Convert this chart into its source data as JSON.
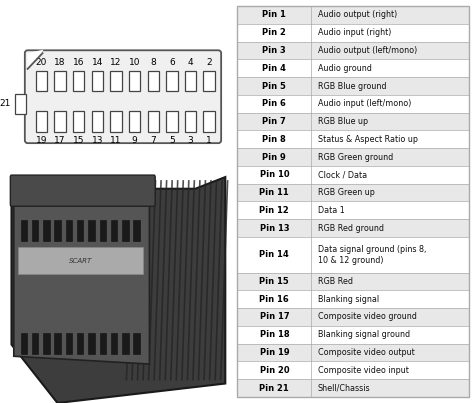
{
  "pins": [
    {
      "num": 1,
      "desc": "Audio output (right)"
    },
    {
      "num": 2,
      "desc": "Audio input (right)"
    },
    {
      "num": 3,
      "desc": "Audio output (left/mono)"
    },
    {
      "num": 4,
      "desc": "Audio ground"
    },
    {
      "num": 5,
      "desc": "RGB Blue ground"
    },
    {
      "num": 6,
      "desc": "Audio input (left/mono)"
    },
    {
      "num": 7,
      "desc": "RGB Blue up"
    },
    {
      "num": 8,
      "desc": "Status & Aspect Ratio up"
    },
    {
      "num": 9,
      "desc": "RGB Green ground"
    },
    {
      "num": 10,
      "desc": "Clock / Data"
    },
    {
      "num": 11,
      "desc": "RGB Green up"
    },
    {
      "num": 12,
      "desc": "Data 1"
    },
    {
      "num": 13,
      "desc": "RGB Red ground"
    },
    {
      "num": 14,
      "desc": "Data signal ground (pins 8,\n10 & 12 ground)"
    },
    {
      "num": 15,
      "desc": "RGB Red"
    },
    {
      "num": 16,
      "desc": "Blanking signal"
    },
    {
      "num": 17,
      "desc": "Composite video ground"
    },
    {
      "num": 18,
      "desc": "Blanking signal ground"
    },
    {
      "num": 19,
      "desc": "Composite video output"
    },
    {
      "num": 20,
      "desc": "Composite video input"
    },
    {
      "num": 21,
      "desc": "Shell/Chassis"
    }
  ],
  "bg_color": "#ffffff",
  "table_border_color": "#aaaaaa",
  "row_alt_color": "#e8e8e8",
  "row_color": "#ffffff",
  "pin_label_color": "#000000",
  "desc_color": "#111111",
  "connector_bg": "#f0f0f0",
  "connector_border": "#555555",
  "pin_box_border": "#444444",
  "top_pin_numbers": [
    20,
    18,
    16,
    14,
    12,
    10,
    8,
    6,
    4,
    2
  ],
  "bot_pin_numbers": [
    19,
    17,
    15,
    13,
    11,
    9,
    7,
    5,
    3,
    1
  ],
  "figsize": [
    4.74,
    4.03
  ],
  "dpi": 100
}
